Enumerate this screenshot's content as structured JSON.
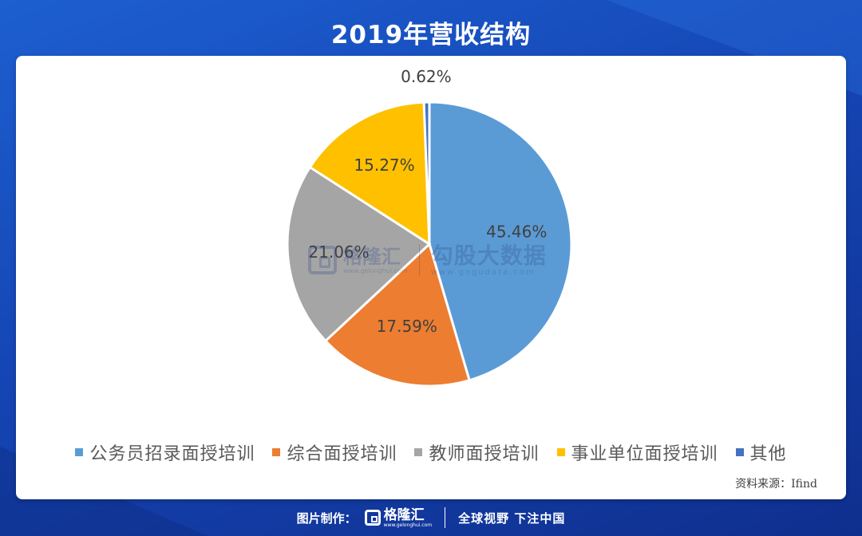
{
  "title": "2019年营收结构",
  "chart_data": {
    "type": "pie",
    "title": "",
    "slices": [
      {
        "name": "公务员招录面授培训",
        "value": 45.46,
        "label": "45.46%",
        "color": "#5b9bd5"
      },
      {
        "name": "综合面授培训",
        "value": 17.59,
        "label": "17.59%",
        "color": "#ed7d31"
      },
      {
        "name": "教师面授培训",
        "value": 21.06,
        "label": "21.06%",
        "color": "#a5a5a5"
      },
      {
        "name": "事业单位面授培训",
        "value": 15.27,
        "label": "15.27%",
        "color": "#ffc000"
      },
      {
        "name": "其他",
        "value": 0.62,
        "label": "0.62%",
        "color": "#4472c4"
      }
    ],
    "legend_position": "bottom"
  },
  "source": "资料来源：Ifind",
  "watermark": {
    "brand": "格隆汇",
    "brand_url": "www.gelonghui.com",
    "partner": "勾股大数据",
    "partner_url": "www.gogudata.com"
  },
  "footer": {
    "credit": "图片制作：",
    "brand": "格隆汇",
    "brand_url": "www.gelonghui.com",
    "slogan": "全球视野 下注中国"
  }
}
